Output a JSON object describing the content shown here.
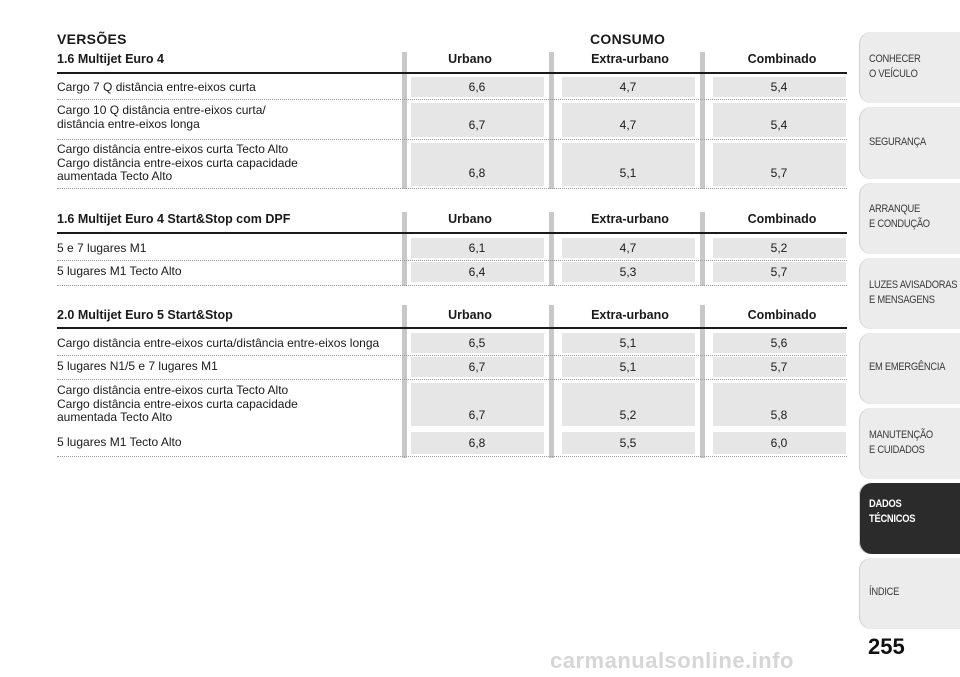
{
  "headers": {
    "versions": "VERSÕES",
    "consumption": "CONSUMO"
  },
  "sections": [
    {
      "title": "1.6 Multijet Euro 4",
      "columns": [
        "Urbano",
        "Extra-urbano",
        "Combinado"
      ],
      "rows": [
        {
          "label": "Cargo 7 Q distância entre-eixos curta",
          "urbano": "6,6",
          "extra": "4,7",
          "comb": "5,4"
        },
        {
          "label": "Cargo 10 Q distância entre-eixos curta/\ndistância entre-eixos longa",
          "urbano": "6,7",
          "extra": "4,7",
          "comb": "5,4"
        },
        {
          "label": "Cargo distância entre-eixos curta Tecto Alto\nCargo distância entre-eixos curta capacidade\naumentada Tecto Alto",
          "urbano": "6,8",
          "extra": "5,1",
          "comb": "5,7"
        }
      ]
    },
    {
      "title": "1.6 Multijet Euro 4 Start&Stop com DPF",
      "columns": [
        "Urbano",
        "Extra-urbano",
        "Combinado"
      ],
      "rows": [
        {
          "label": "5 e 7 lugares M1",
          "urbano": "6,1",
          "extra": "4,7",
          "comb": "5,2"
        },
        {
          "label": "5 lugares M1 Tecto Alto",
          "urbano": "6,4",
          "extra": "5,3",
          "comb": "5,7"
        }
      ]
    },
    {
      "title": "2.0 Multijet Euro 5 Start&Stop",
      "columns": [
        "Urbano",
        "Extra-urbano",
        "Combinado"
      ],
      "rows": [
        {
          "label": "Cargo distância entre-eixos curta/distância entre-eixos longa",
          "urbano": "6,5",
          "extra": "5,1",
          "comb": "5,6"
        },
        {
          "label": "5 lugares N1/5 e 7 lugares M1",
          "urbano": "6,7",
          "extra": "5,1",
          "comb": "5,7"
        },
        {
          "label": "Cargo distância entre-eixos curta Tecto Alto\nCargo distância entre-eixos curta capacidade\naumentada Tecto Alto",
          "urbano": "6,7",
          "extra": "5,2",
          "comb": "5,8"
        },
        {
          "label": "5 lugares M1 Tecto Alto",
          "urbano": "6,8",
          "extra": "5,5",
          "comb": "6,0"
        }
      ]
    }
  ],
  "sidebar": {
    "tabs": [
      {
        "label": "CONHECER\nO VEÍCULO",
        "active": false
      },
      {
        "label": "SEGURANÇA",
        "active": false
      },
      {
        "label": "ARRANQUE\nE CONDUÇÃO",
        "active": false
      },
      {
        "label": "LUZES AVISADORAS\nE MENSAGENS",
        "active": false
      },
      {
        "label": "EM EMERGÊNCIA",
        "active": false
      },
      {
        "label": "MANUTENÇÃO\nE CUIDADOS",
        "active": false
      },
      {
        "label": "DADOS\nTÉCNICOS",
        "active": true
      },
      {
        "label": "ÍNDICE",
        "active": false
      }
    ]
  },
  "page_number": "255",
  "watermark": "carmanualsonline.info"
}
